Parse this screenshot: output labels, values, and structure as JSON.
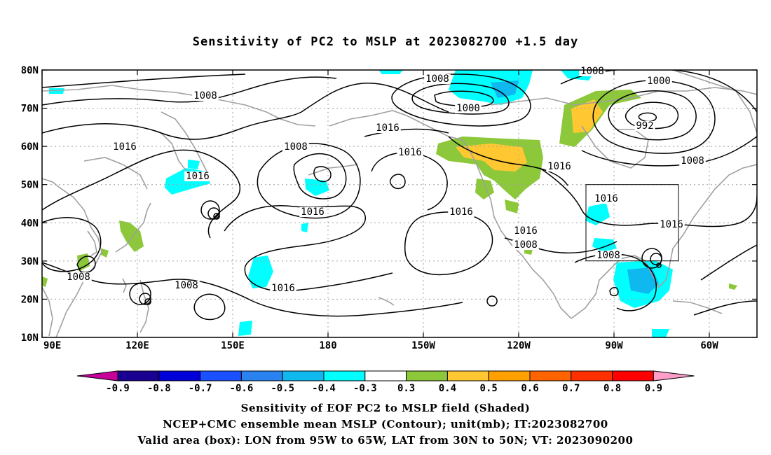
{
  "title": "Sensitivity of PC2 to MSLP at 2023082700 +1.5 day",
  "map": {
    "lat_labels": [
      "80N",
      "70N",
      "60N",
      "50N",
      "40N",
      "30N",
      "20N",
      "10N"
    ],
    "lon_labels": [
      "90E",
      "120E",
      "150E",
      "180",
      "150W",
      "120W",
      "90W",
      "60W"
    ],
    "contour_labels": [
      {
        "text": "1008"
      },
      {
        "text": "1016"
      },
      {
        "text": "1016"
      },
      {
        "text": "1008"
      },
      {
        "text": "1008"
      },
      {
        "text": "1008"
      },
      {
        "text": "1016"
      },
      {
        "text": "1016"
      },
      {
        "text": "1008"
      },
      {
        "text": "1000"
      },
      {
        "text": "1016"
      },
      {
        "text": "1016"
      },
      {
        "text": "1008"
      },
      {
        "text": "1000"
      },
      {
        "text": "992"
      },
      {
        "text": "1016"
      },
      {
        "text": "1016"
      },
      {
        "text": "1016"
      },
      {
        "text": "1008"
      },
      {
        "text": "1016"
      },
      {
        "text": "1008"
      },
      {
        "text": "1008"
      },
      {
        "text": "1016"
      }
    ],
    "valid_box": {
      "lon_from": "95W",
      "lon_to": "65W",
      "lat_from": "30N",
      "lat_to": "50N"
    }
  },
  "colorbar": {
    "labels": [
      "-0.9",
      "-0.8",
      "-0.7",
      "-0.6",
      "-0.5",
      "-0.4",
      "-0.3",
      "0.3",
      "0.4",
      "0.5",
      "0.6",
      "0.7",
      "0.8",
      "0.9"
    ],
    "colors": [
      "#1a0090",
      "#0000d8",
      "#1a50ff",
      "#2a82f0",
      "#10b8f0",
      "#00ffff",
      "#ffffff",
      "#8cc83a",
      "#ffc832",
      "#ffa000",
      "#ff6400",
      "#ff3000",
      "#ff0000"
    ],
    "low_end_color": "#c8009a",
    "high_end_color": "#ff9ec8"
  },
  "captions": {
    "line1": "Sensitivity of EOF PC2 to MSLP field (Shaded)",
    "line2": "NCEP+CMC ensemble mean MSLP (Contour); unit(mb); IT:2023082700",
    "line3": "Valid area (box): LON from 95W to 65W, LAT from 30N to 50N; VT: 2023090200"
  },
  "colors": {
    "contour": "#000000",
    "coastline": "#a0a0a0",
    "grid": "#a0a0a0",
    "cyan": "#00ffff",
    "blue": "#10b8f0",
    "green": "#8cc83a",
    "yellow": "#ffc832"
  }
}
